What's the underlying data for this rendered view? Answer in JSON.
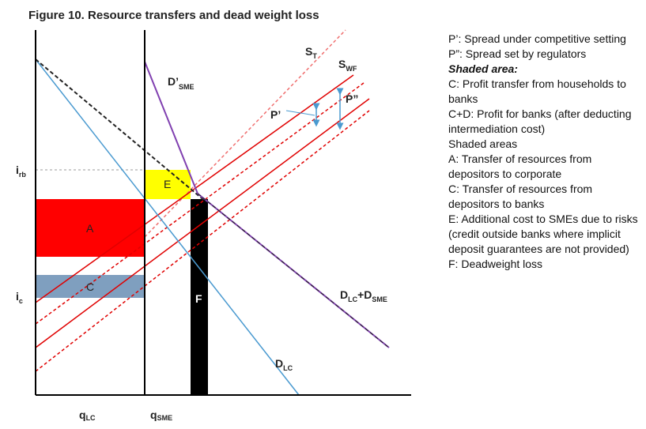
{
  "title": "Figure 10. Resource transfers and dead weight loss",
  "labels": {
    "s_t": {
      "main": "S",
      "sub": "T"
    },
    "s_wf": {
      "main": "S",
      "sub": "WF"
    },
    "d_sme_prime": {
      "main": "D’",
      "sub": "SME"
    },
    "p_prime": {
      "main": "P’"
    },
    "p_double": {
      "main": "P”"
    },
    "i_rb": {
      "main": "i",
      "sub": "rb"
    },
    "i_c": {
      "main": "i",
      "sub": "c"
    },
    "area_a": {
      "main": "A"
    },
    "area_c": {
      "main": "C"
    },
    "area_e": {
      "main": "E"
    },
    "area_f": {
      "main": "F"
    },
    "d_total": {
      "main1": "D",
      "sub1": "LC",
      "plus": "+D",
      "sub2": "SME"
    },
    "d_lc": {
      "main": "D",
      "sub": "LC"
    },
    "q_lc": {
      "main": "q",
      "sub": "LC"
    },
    "q_sme": {
      "main": "q",
      "sub": "SME"
    }
  },
  "notes": [
    {
      "text": "P’: Spread under competitive setting"
    },
    {
      "text": "P”: Spread set by regulators"
    },
    {
      "text": "Shaded area:",
      "style": "bold-italic"
    },
    {
      "text": "C: Profit transfer from households to banks"
    },
    {
      "text": "C+D: Profit for banks (after deducting intermediation cost)"
    },
    {
      "text": "Shaded areas"
    },
    {
      "text": "A: Transfer of resources from depositors to corporate"
    },
    {
      "text": "C: Transfer of resources from depositors to banks"
    },
    {
      "text": "E: Additional cost to SMEs due to risks (credit outside banks where implicit deposit guarantees are not provided)"
    },
    {
      "text": "F: Deadweight loss"
    }
  ]
}
